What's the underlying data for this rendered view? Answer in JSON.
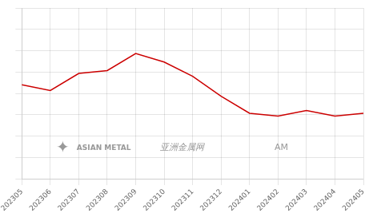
{
  "chart_data": {
    "type": "line",
    "categories": [
      "202305",
      "202306",
      "202307",
      "202308",
      "202309",
      "202310",
      "202311",
      "202312",
      "202401",
      "202402",
      "202403",
      "202404",
      "202405"
    ],
    "values": [
      63,
      61,
      67,
      68,
      74,
      71,
      66,
      59,
      53,
      52,
      54,
      52,
      53
    ],
    "color": "#cc0000",
    "ylim": [
      30,
      90
    ],
    "yticks": [
      30,
      37.5,
      45,
      52.5,
      60,
      67.5,
      75,
      82.5,
      90
    ],
    "grid": true,
    "tick_labels": "x",
    "annotations": [
      "✦",
      "ASIAN METAL",
      "亚洲金属网",
      "AM"
    ]
  }
}
